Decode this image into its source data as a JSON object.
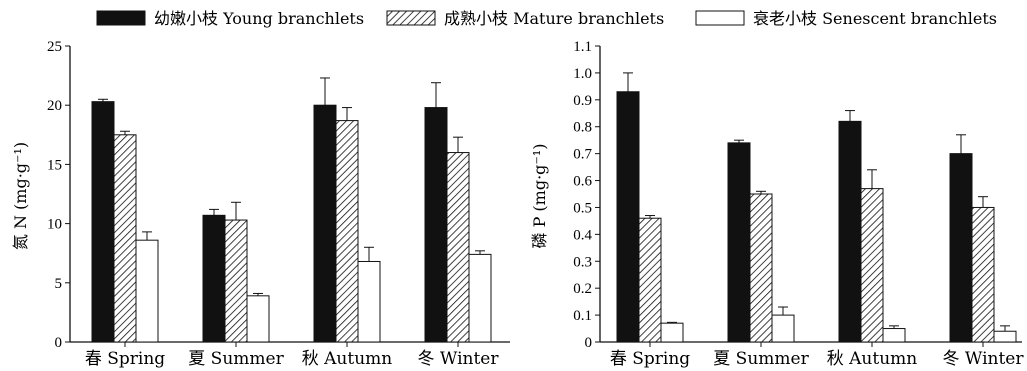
{
  "legend": [
    {
      "label": "幼嫩小枝 Young branchlets",
      "style": "young"
    },
    {
      "label": "成熟小枝 Mature branchlets",
      "style": "mature"
    },
    {
      "label": "衰老小枝 Senescent branchlets",
      "style": "senescent"
    }
  ],
  "colors": {
    "young": "#111111",
    "mature": "#ffffff",
    "senescent": "#ffffff",
    "axis": "#111111"
  },
  "chart_data": [
    {
      "type": "bar",
      "ylabel": "氮 N (mg·g⁻¹)",
      "ylim": [
        0,
        25
      ],
      "yticks": [
        "0",
        "5",
        "10",
        "15",
        "20",
        "25"
      ],
      "categories": [
        "春 Spring",
        "夏 Summer",
        "秋 Autumn",
        "冬 Winter"
      ],
      "series": [
        {
          "name": "幼嫩小枝 Young branchlets",
          "values": [
            20.3,
            10.7,
            20.0,
            19.8
          ],
          "errors": [
            0.2,
            0.5,
            2.3,
            2.1
          ]
        },
        {
          "name": "成熟小枝 Mature branchlets",
          "values": [
            17.5,
            10.3,
            18.7,
            16.0
          ],
          "errors": [
            0.3,
            1.5,
            1.1,
            1.3
          ]
        },
        {
          "name": "衰老小枝 Senescent branchlets",
          "values": [
            8.6,
            3.9,
            6.8,
            7.4
          ],
          "errors": [
            0.7,
            0.2,
            1.2,
            0.3
          ]
        }
      ]
    },
    {
      "type": "bar",
      "ylabel": "磷 P (mg·g⁻¹)",
      "ylim": [
        0,
        1.1
      ],
      "yticks": [
        "0",
        "0.1",
        "0.2",
        "0.3",
        "0.4",
        "0.5",
        "0.6",
        "0.7",
        "0.8",
        "0.9",
        "1.0",
        "1.1"
      ],
      "categories": [
        "春 Spring",
        "夏 Summer",
        "秋 Autumn",
        "冬 Winter"
      ],
      "series": [
        {
          "name": "幼嫩小枝 Young branchlets",
          "values": [
            0.93,
            0.74,
            0.82,
            0.7
          ],
          "errors": [
            0.07,
            0.01,
            0.04,
            0.07
          ]
        },
        {
          "name": "成熟小枝 Mature branchlets",
          "values": [
            0.46,
            0.55,
            0.57,
            0.5
          ],
          "errors": [
            0.01,
            0.01,
            0.07,
            0.04
          ]
        },
        {
          "name": "衰老小枝 Senescent branchlets",
          "values": [
            0.07,
            0.1,
            0.05,
            0.04
          ],
          "errors": [
            0.003,
            0.03,
            0.01,
            0.02
          ]
        }
      ]
    }
  ]
}
